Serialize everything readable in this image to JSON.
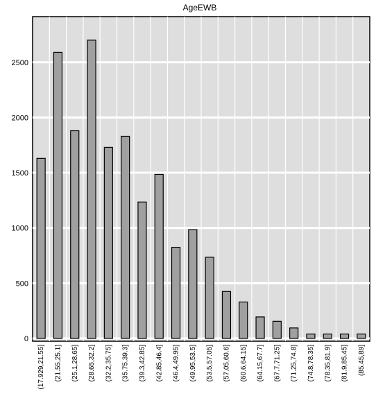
{
  "chart_data": {
    "type": "bar",
    "title": "AgeEWB",
    "xlabel": "",
    "ylabel": "",
    "categories": [
      "(17.929,21.55]",
      "(21.55,25.1]",
      "(25.1,28.65]",
      "(28.65,32.2]",
      "(32.2,35.75]",
      "(35.75,39.3]",
      "(39.3,42.85]",
      "(42.85,46.4]",
      "(46.4,49.95]",
      "(49.95,53.5]",
      "(53.5,57.05]",
      "(57.05,60.6]",
      "(60.6,64.15]",
      "(64.15,67.7]",
      "(67.7,71.25]",
      "(71.25,74.8]",
      "(74.8,78.35]",
      "(78.35,81.9]",
      "(81.9,85.45]",
      "(85.45,89]"
    ],
    "values": [
      1630,
      2590,
      1880,
      2700,
      1730,
      1830,
      1235,
      1485,
      825,
      985,
      735,
      425,
      330,
      195,
      155,
      95,
      40,
      40,
      40,
      40
    ],
    "yticks": [
      0,
      500,
      1000,
      1500,
      2000,
      2500
    ],
    "ylim": [
      0,
      2900
    ],
    "grid": true,
    "colors": {
      "bar_fill": "#a0a0a0",
      "bar_stroke": "#000000",
      "plot_bg": "#dedede",
      "grid": "#ffffff"
    }
  }
}
